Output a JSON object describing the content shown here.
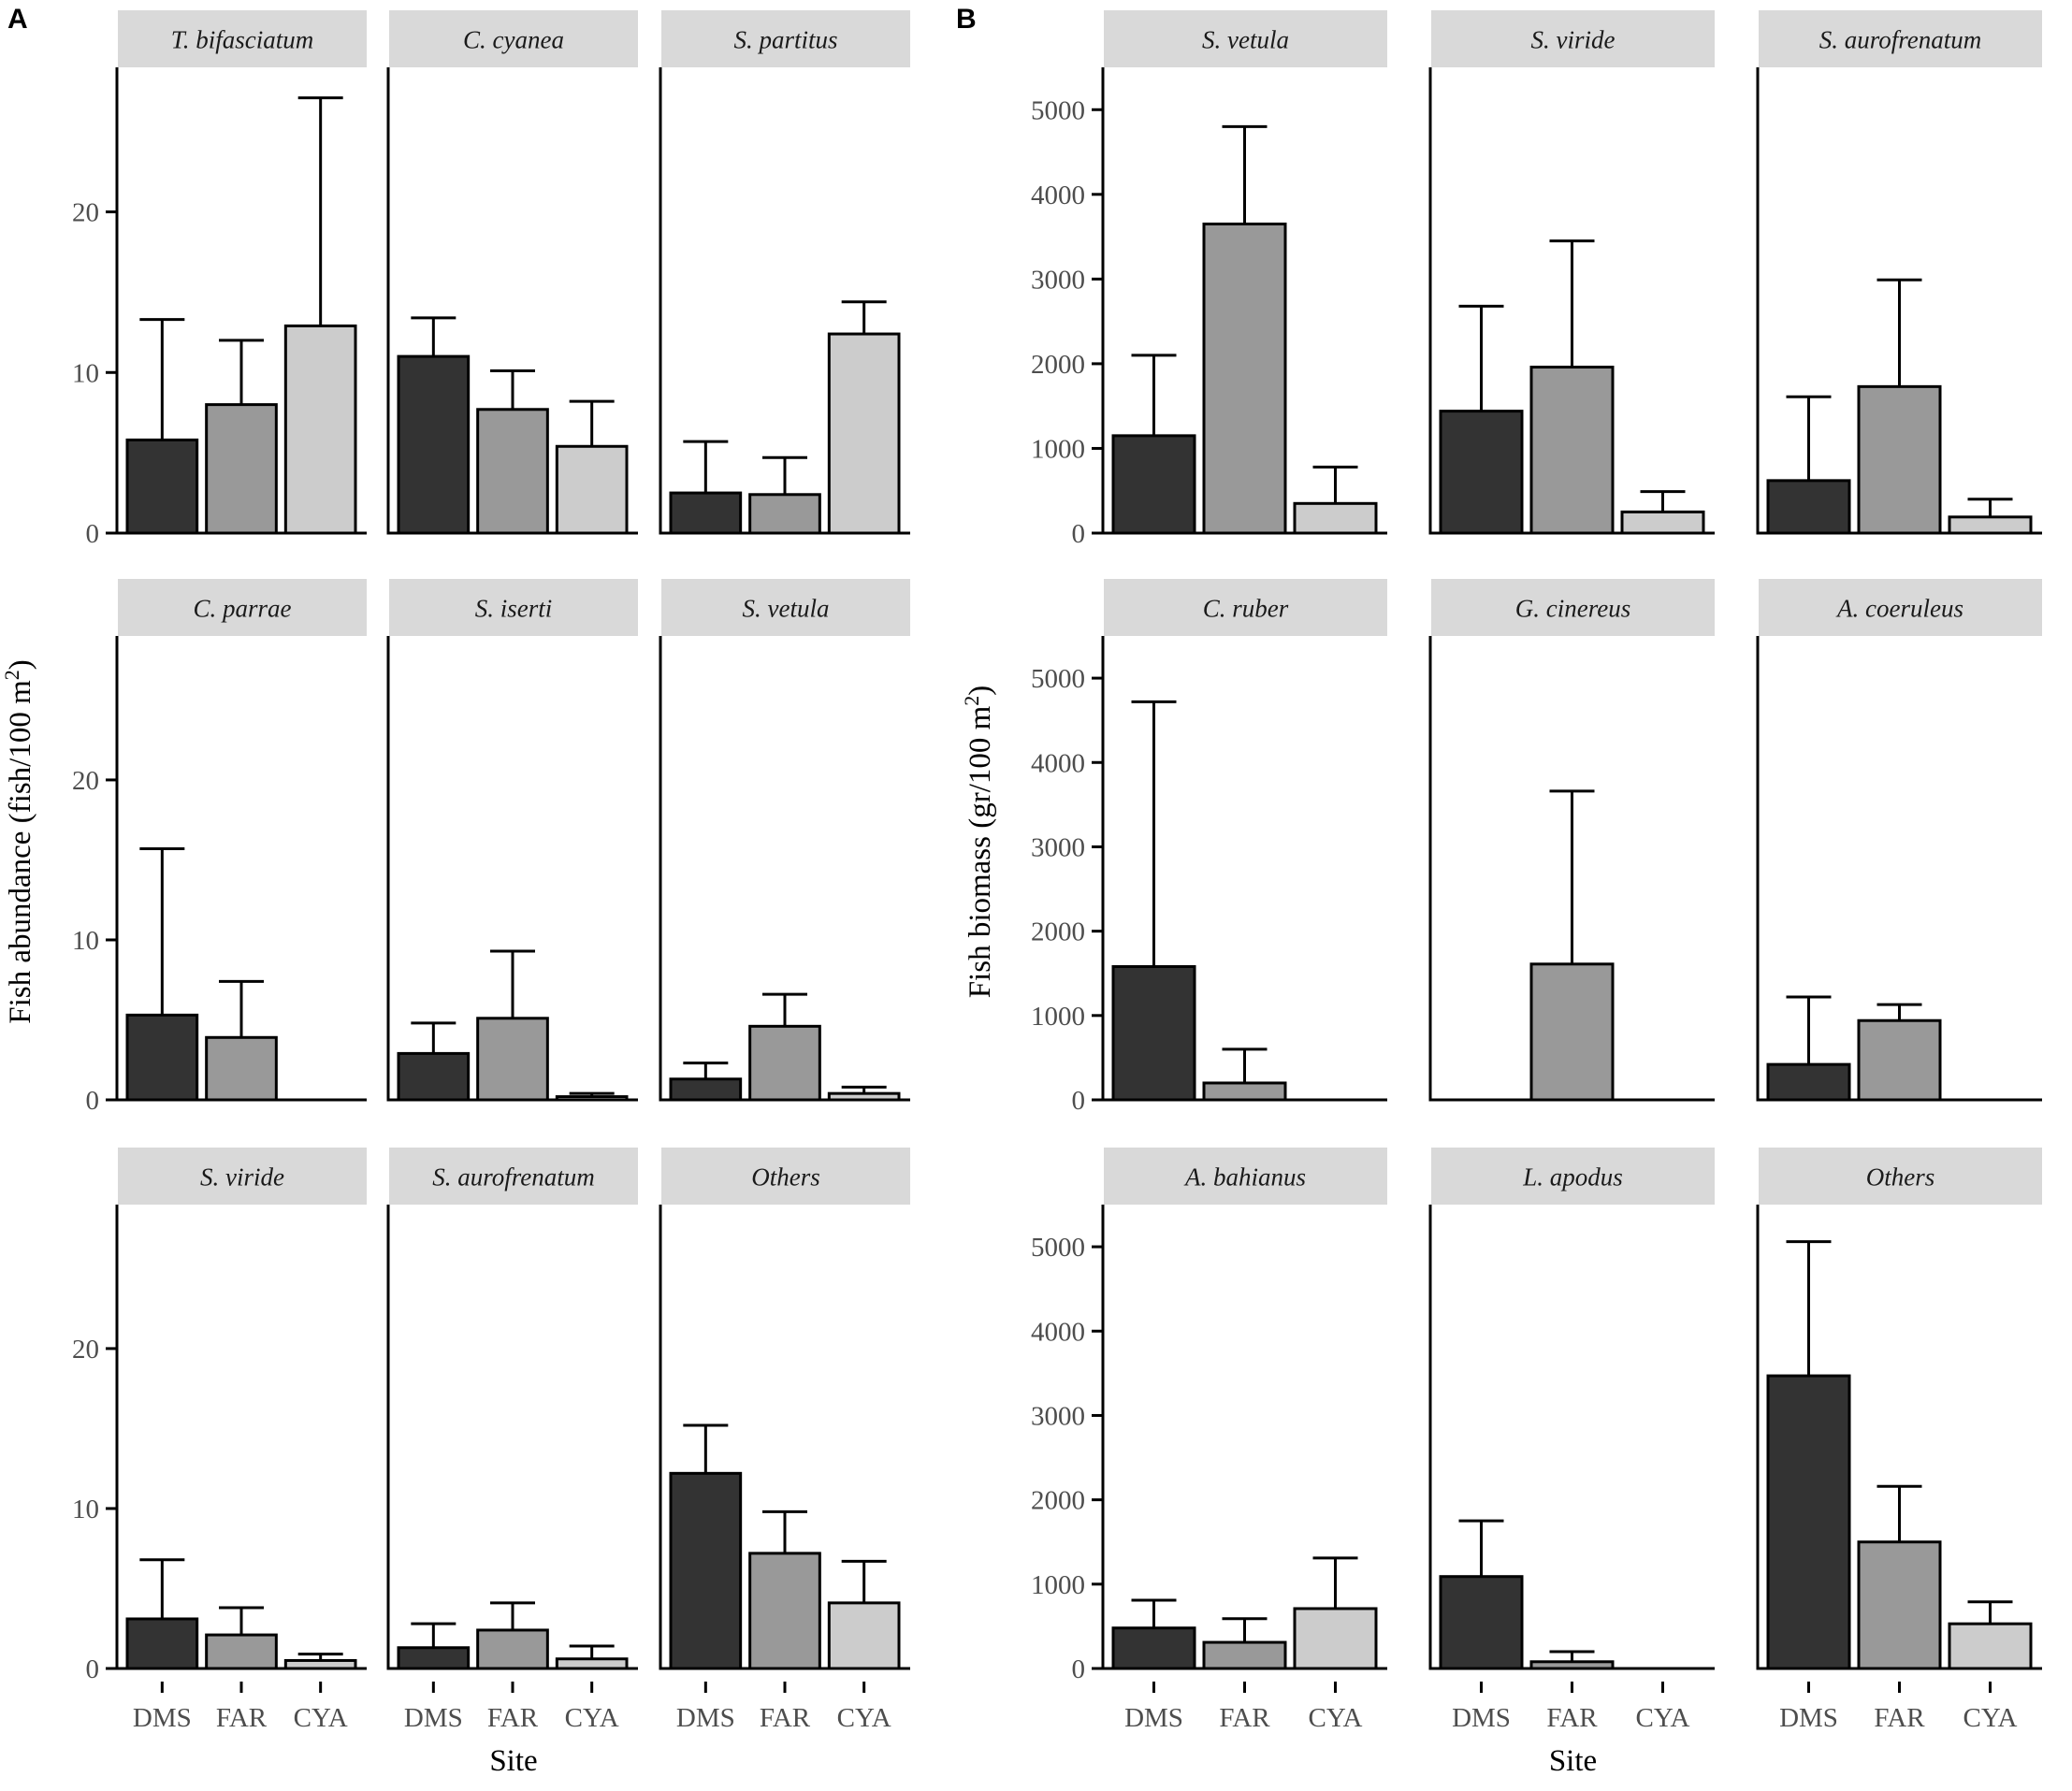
{
  "colors": {
    "DMS": "#333333",
    "FAR": "#999999",
    "CYA": "#cccccc",
    "strip": "#d9d9d9",
    "axis": "#000000"
  },
  "chart_data": [
    {
      "panel_label": "A",
      "type": "bar",
      "title": "",
      "xlabel": "Site",
      "ylabel": "Fish abundance (fish/100 m²)",
      "ylabel_base": "Fish abundance (fish/100 m",
      "ylabel_sup": "2",
      "ylabel_close": ")",
      "ylim": [
        0,
        29
      ],
      "yticks": [
        0,
        10,
        20
      ],
      "ytick_labels": [
        "0",
        "10",
        "20"
      ],
      "categories": [
        "DMS",
        "FAR",
        "CYA"
      ],
      "facets": [
        {
          "name": "T. bifasciatum",
          "values": [
            5.8,
            8.0,
            12.9
          ],
          "errors_upper": [
            13.3,
            12.0,
            27.1
          ]
        },
        {
          "name": "C. cyanea",
          "values": [
            11.0,
            7.7,
            5.4
          ],
          "errors_upper": [
            13.4,
            10.1,
            8.2
          ]
        },
        {
          "name": "S. partitus",
          "values": [
            2.5,
            2.4,
            12.4
          ],
          "errors_upper": [
            5.7,
            4.7,
            14.4
          ]
        },
        {
          "name": "C. parrae",
          "values": [
            5.3,
            3.9,
            0
          ],
          "errors_upper": [
            15.7,
            7.4,
            0
          ]
        },
        {
          "name": "S. iserti",
          "values": [
            2.9,
            5.1,
            0.2
          ],
          "errors_upper": [
            4.8,
            9.3,
            0.4
          ]
        },
        {
          "name": "S. vetula",
          "values": [
            1.3,
            4.6,
            0.4
          ],
          "errors_upper": [
            2.3,
            6.6,
            0.8
          ]
        },
        {
          "name": "S. viride",
          "values": [
            3.1,
            2.1,
            0.5
          ],
          "errors_upper": [
            6.8,
            3.8,
            0.9
          ]
        },
        {
          "name": "S. aurofrenatum",
          "values": [
            1.3,
            2.4,
            0.6
          ],
          "errors_upper": [
            2.8,
            4.1,
            1.4
          ]
        },
        {
          "name": "Others",
          "values": [
            12.2,
            7.2,
            4.1
          ],
          "errors_upper": [
            15.2,
            9.8,
            6.7
          ]
        }
      ]
    },
    {
      "panel_label": "B",
      "type": "bar",
      "title": "",
      "xlabel": "Site",
      "ylabel": "Fish biomass (gr/100 m²)",
      "ylabel_base": "Fish biomass (gr/100 m",
      "ylabel_sup": "2",
      "ylabel_close": ")",
      "ylim": [
        0,
        5500
      ],
      "yticks": [
        0,
        1000,
        2000,
        3000,
        4000,
        5000
      ],
      "ytick_labels": [
        "0",
        "1000",
        "2000",
        "3000",
        "4000",
        "5000"
      ],
      "categories": [
        "DMS",
        "FAR",
        "CYA"
      ],
      "facets": [
        {
          "name": "S. vetula",
          "values": [
            1150,
            3650,
            350
          ],
          "errors_upper": [
            2100,
            4800,
            780
          ]
        },
        {
          "name": "S. viride",
          "values": [
            1440,
            1960,
            250
          ],
          "errors_upper": [
            2680,
            3450,
            490
          ]
        },
        {
          "name": "S. aurofrenatum",
          "values": [
            620,
            1730,
            190
          ],
          "errors_upper": [
            1610,
            2990,
            400
          ]
        },
        {
          "name": "C. ruber",
          "values": [
            1580,
            200,
            0
          ],
          "errors_upper": [
            4720,
            600,
            0
          ]
        },
        {
          "name": "G. cinereus",
          "values": [
            0,
            1610,
            0
          ],
          "errors_upper": [
            0,
            3660,
            0
          ]
        },
        {
          "name": "A. coeruleus",
          "values": [
            420,
            940,
            0
          ],
          "errors_upper": [
            1220,
            1130,
            0
          ]
        },
        {
          "name": "A. bahianus",
          "values": [
            480,
            310,
            710
          ],
          "errors_upper": [
            810,
            590,
            1310
          ]
        },
        {
          "name": "L. apodus",
          "values": [
            1090,
            80,
            0
          ],
          "errors_upper": [
            1750,
            200,
            0
          ]
        },
        {
          "name": "Others",
          "values": [
            3470,
            1500,
            530
          ],
          "errors_upper": [
            5060,
            2160,
            790
          ]
        }
      ]
    }
  ]
}
